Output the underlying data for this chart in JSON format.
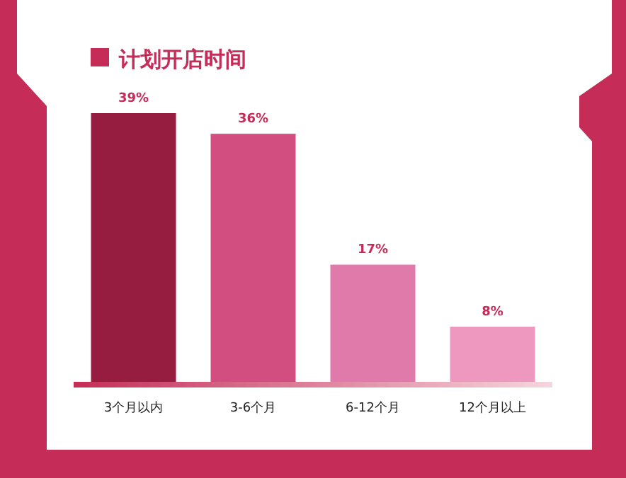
{
  "chart_data": {
    "type": "bar",
    "title": "计划开店时间",
    "categories": [
      "3个月以内",
      "3-6个月",
      "6-12个月",
      "12个月以上"
    ],
    "values": [
      39,
      36,
      17,
      8
    ],
    "colors": [
      "#961c40",
      "#d24e80",
      "#e07aaa",
      "#ef98bf"
    ],
    "data_labels": true,
    "value_labels": [
      "39%",
      "36%",
      "17%",
      "8%"
    ]
  }
}
